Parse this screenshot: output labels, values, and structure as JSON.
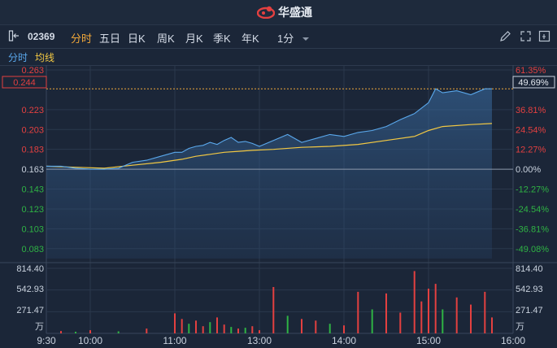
{
  "brand": {
    "name": "华盛通",
    "logo_icon": "huashengtong-logo-icon"
  },
  "toolbar": {
    "collapse_icon": "panel-collapse-icon",
    "symbol": "02369",
    "tabs": [
      "分时",
      "五日",
      "日K",
      "周K",
      "月K",
      "季K",
      "年K"
    ],
    "active_tab": "分时",
    "interval": "1分",
    "right_icons": [
      "pencil-icon",
      "expand-icon",
      "fullscreen-icon"
    ]
  },
  "subbar": {
    "mode": "分时",
    "overlay": "均线"
  },
  "price_axis": {
    "left_labels": [
      "0.263",
      "0.223",
      "0.203",
      "0.183",
      "0.163",
      "0.143",
      "0.123",
      "0.103",
      "0.083"
    ],
    "right_labels": [
      "61.35%",
      "36.81%",
      "24.54%",
      "12.27%",
      "0.00%",
      "-12.27%",
      "-24.54%",
      "-36.81%",
      "-49.08%"
    ],
    "current_price": "0.244",
    "current_change": "49.69%"
  },
  "volume_axis": {
    "left_labels": [
      "814.40",
      "542.93",
      "271.47",
      "万"
    ],
    "right_labels": [
      "814.40",
      "542.93",
      "271.47",
      "万"
    ]
  },
  "time_axis": [
    "9:30",
    "10:00",
    "11:00",
    "13:00",
    "14:00",
    "15:00",
    "16:00"
  ],
  "colors": {
    "up": "#e34040",
    "down": "#2fb344",
    "price_line": "#5aa8ec",
    "avg_line": "#f2c843",
    "accent": "#f0a73a"
  },
  "chart_data": {
    "type": "line",
    "x_label": "",
    "y_label": "",
    "prev_close": 0.163,
    "ylim": [
      0.073,
      0.263
    ],
    "time_range": [
      "9:30",
      "16:00"
    ],
    "series": [
      {
        "points": [
          [
            "9:30",
            0.166
          ],
          [
            "9:40",
            0.166
          ],
          [
            "9:50",
            0.164
          ],
          [
            "10:00",
            0.163
          ],
          [
            "10:10",
            0.163
          ],
          [
            "10:20",
            0.164
          ],
          [
            "10:30",
            0.17
          ],
          [
            "10:40",
            0.172
          ],
          [
            "10:50",
            0.176
          ],
          [
            "11:00",
            0.18
          ],
          [
            "11:10",
            0.18
          ],
          [
            "11:20",
            0.184
          ],
          [
            "11:30",
            0.186
          ],
          [
            "11:40",
            0.187
          ],
          [
            "11:50",
            0.19
          ],
          [
            "12:00",
            0.188
          ],
          [
            "12:10",
            0.192
          ],
          [
            "12:20",
            0.195
          ],
          [
            "12:30",
            0.19
          ],
          [
            "12:40",
            0.191
          ],
          [
            "12:50",
            0.189
          ],
          [
            "13:00",
            0.186
          ],
          [
            "13:10",
            0.192
          ],
          [
            "13:20",
            0.198
          ],
          [
            "13:30",
            0.19
          ],
          [
            "13:40",
            0.194
          ],
          [
            "13:50",
            0.198
          ],
          [
            "14:00",
            0.196
          ],
          [
            "14:10",
            0.2
          ],
          [
            "14:20",
            0.202
          ],
          [
            "14:30",
            0.206
          ],
          [
            "14:40",
            0.213
          ],
          [
            "14:50",
            0.219
          ],
          [
            "15:00",
            0.23
          ],
          [
            "15:05",
            0.244
          ],
          [
            "15:10",
            0.24
          ],
          [
            "15:20",
            0.242
          ],
          [
            "15:30",
            0.238
          ],
          [
            "15:40",
            0.244
          ],
          [
            "15:45",
            0.244
          ]
        ]
      },
      {
        "points": [
          [
            "9:30",
            0.166
          ],
          [
            "9:50",
            0.165
          ],
          [
            "10:10",
            0.164
          ],
          [
            "10:30",
            0.167
          ],
          [
            "10:50",
            0.17
          ],
          [
            "11:10",
            0.173
          ],
          [
            "11:30",
            0.176
          ],
          [
            "11:50",
            0.178
          ],
          [
            "12:10",
            0.18
          ],
          [
            "12:30",
            0.181
          ],
          [
            "12:50",
            0.182
          ],
          [
            "13:10",
            0.183
          ],
          [
            "13:30",
            0.185
          ],
          [
            "13:50",
            0.186
          ],
          [
            "14:10",
            0.188
          ],
          [
            "14:30",
            0.192
          ],
          [
            "14:50",
            0.196
          ],
          [
            "15:00",
            0.202
          ],
          [
            "15:10",
            0.206
          ],
          [
            "15:30",
            0.208
          ],
          [
            "15:45",
            0.209
          ]
        ]
      }
    ],
    "volume": {
      "unit": "万",
      "ylim": [
        0,
        814.4
      ],
      "bars": [
        [
          "9:40",
          30,
          "up"
        ],
        [
          "9:50",
          20,
          "down"
        ],
        [
          "10:00",
          40,
          "up"
        ],
        [
          "10:20",
          25,
          "down"
        ],
        [
          "10:40",
          60,
          "up"
        ],
        [
          "11:00",
          250,
          "up"
        ],
        [
          "11:10",
          180,
          "up"
        ],
        [
          "11:20",
          120,
          "down"
        ],
        [
          "11:30",
          160,
          "up"
        ],
        [
          "11:40",
          90,
          "up"
        ],
        [
          "11:50",
          140,
          "down"
        ],
        [
          "12:00",
          200,
          "up"
        ],
        [
          "12:10",
          110,
          "up"
        ],
        [
          "12:20",
          80,
          "down"
        ],
        [
          "12:30",
          60,
          "up"
        ],
        [
          "12:40",
          70,
          "down"
        ],
        [
          "12:50",
          90,
          "up"
        ],
        [
          "13:00",
          40,
          "up"
        ],
        [
          "13:10",
          580,
          "up"
        ],
        [
          "13:20",
          220,
          "down"
        ],
        [
          "13:30",
          180,
          "up"
        ],
        [
          "13:40",
          160,
          "up"
        ],
        [
          "13:50",
          120,
          "down"
        ],
        [
          "14:00",
          100,
          "up"
        ],
        [
          "14:10",
          520,
          "up"
        ],
        [
          "14:20",
          300,
          "down"
        ],
        [
          "14:30",
          500,
          "up"
        ],
        [
          "14:40",
          260,
          "up"
        ],
        [
          "14:50",
          780,
          "up"
        ],
        [
          "14:55",
          400,
          "up"
        ],
        [
          "15:00",
          560,
          "up"
        ],
        [
          "15:05",
          620,
          "up"
        ],
        [
          "15:10",
          300,
          "down"
        ],
        [
          "15:20",
          450,
          "up"
        ],
        [
          "15:30",
          360,
          "up"
        ],
        [
          "15:40",
          520,
          "up"
        ],
        [
          "15:45",
          200,
          "up"
        ]
      ]
    }
  }
}
